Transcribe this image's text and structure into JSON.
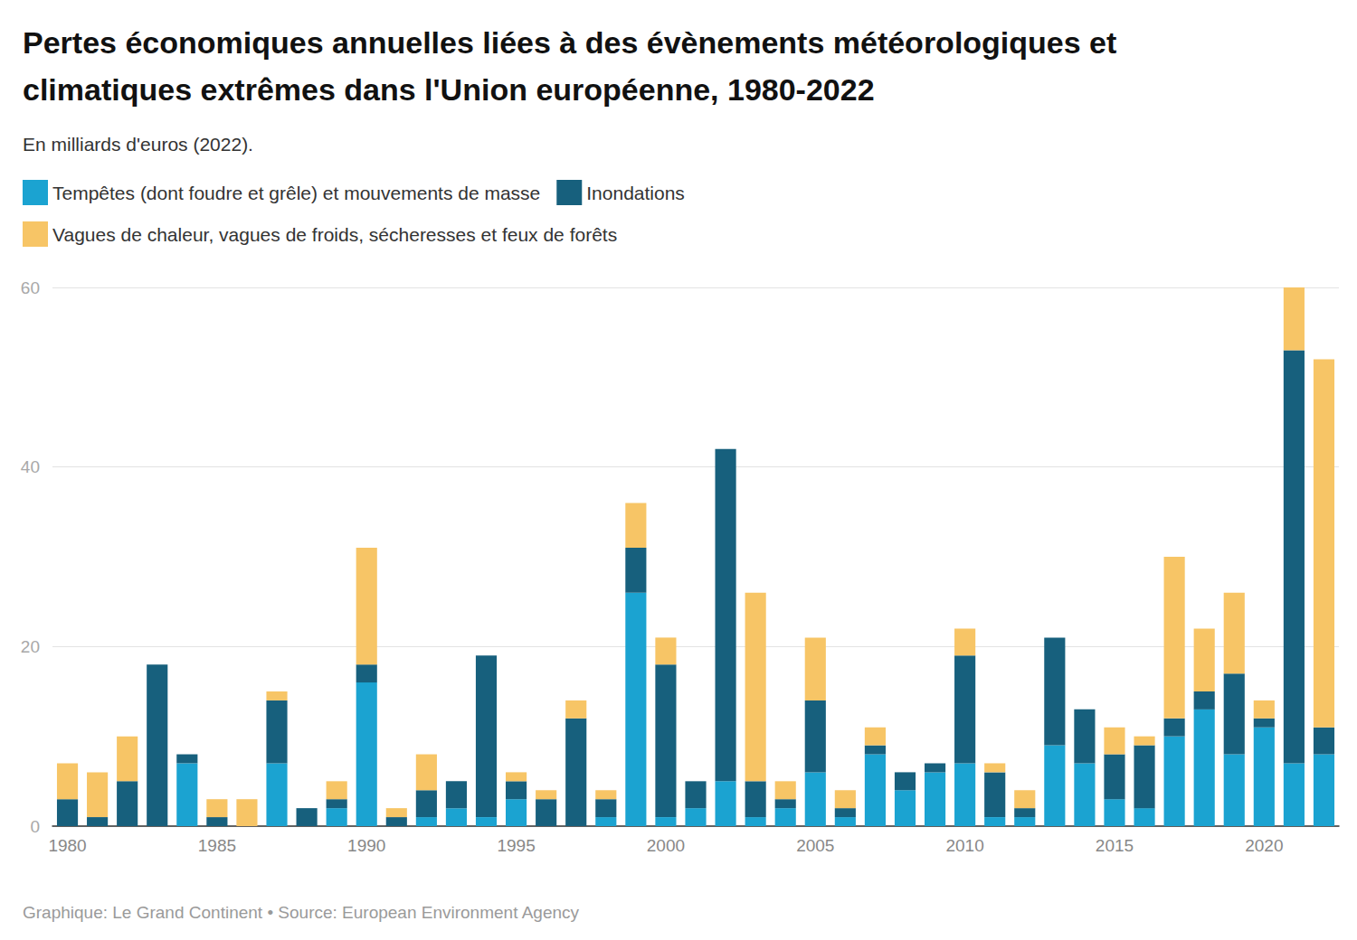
{
  "chart_data": {
    "type": "bar",
    "title": "Pertes économiques annuelles liées à des évènements météorologiques et climatiques extrêmes dans l'Union européenne, 1980-2022",
    "subtitle": "En milliards d'euros (2022).",
    "source": "Graphique: Le Grand Continent • Source: European Environment Agency",
    "categories": [
      "1980",
      null,
      null,
      null,
      null,
      "1985",
      null,
      null,
      null,
      null,
      "1990",
      null,
      null,
      null,
      null,
      "1995",
      null,
      null,
      null,
      null,
      "2000",
      null,
      null,
      null,
      null,
      "2005",
      null,
      null,
      null,
      null,
      "2010",
      null,
      null,
      null,
      null,
      "2015",
      null,
      null,
      null,
      null,
      "2020",
      null,
      null
    ],
    "series": [
      {
        "name": "Tempêtes (dont foudre et grêle) et mouvements de masse",
        "color": "#1ba3d1",
        "values": [
          0,
          0,
          0,
          0,
          7,
          0,
          0,
          7,
          0,
          2,
          16,
          0,
          1,
          2,
          1,
          3,
          0,
          0,
          1,
          26,
          1,
          2,
          5,
          1,
          2,
          6,
          1,
          8,
          4,
          6,
          7,
          1,
          1,
          9,
          7,
          3,
          2,
          10,
          13,
          8,
          11,
          7,
          8
        ]
      },
      {
        "name": "Inondations",
        "color": "#17607d",
        "values": [
          3,
          1,
          5,
          18,
          1,
          1,
          0,
          7,
          2,
          1,
          2,
          1,
          3,
          3,
          18,
          2,
          3,
          12,
          2,
          5,
          17,
          3,
          37,
          4,
          1,
          8,
          1,
          1,
          2,
          1,
          12,
          5,
          1,
          12,
          6,
          5,
          7,
          2,
          2,
          9,
          1,
          46,
          3
        ]
      },
      {
        "name": "Vagues de chaleur, vagues de froids, sécheresses et feux de forêts",
        "color": "#f7c566",
        "values": [
          4,
          5,
          5,
          0,
          0,
          2,
          3,
          1,
          0,
          2,
          13,
          1,
          4,
          0,
          0,
          1,
          1,
          2,
          1,
          5,
          3,
          0,
          0,
          21,
          2,
          7,
          2,
          2,
          0,
          0,
          3,
          1,
          2,
          0,
          0,
          3,
          1,
          18,
          7,
          9,
          2,
          7,
          41
        ]
      }
    ],
    "ylim": [
      0,
      60
    ],
    "yticks": [
      0,
      20,
      40,
      60
    ],
    "grid": true,
    "stacked": true,
    "legend": "top-left"
  }
}
